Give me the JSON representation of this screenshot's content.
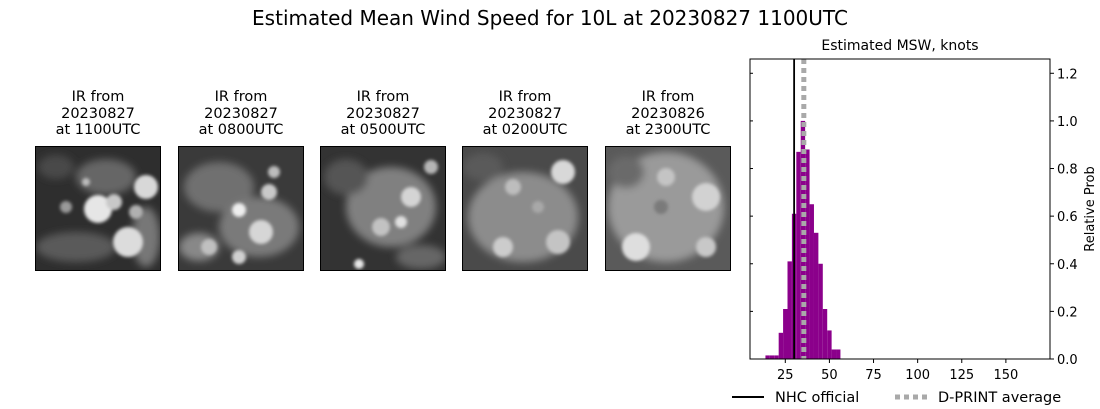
{
  "figure": {
    "suptitle": "Estimated Mean Wind Speed for 10L at 20230827 1100UTC"
  },
  "ir_panels": [
    {
      "title_line1": "IR from",
      "title_line2": "20230827",
      "title_line3": "at 1100UTC"
    },
    {
      "title_line1": "IR from",
      "title_line2": "20230827",
      "title_line3": "at 0800UTC"
    },
    {
      "title_line1": "IR from",
      "title_line2": "20230827",
      "title_line3": "at 0500UTC"
    },
    {
      "title_line1": "IR from",
      "title_line2": "20230827",
      "title_line3": "at 0200UTC"
    },
    {
      "title_line1": "IR from",
      "title_line2": "20230826",
      "title_line3": "at 2300UTC"
    }
  ],
  "chart_data": {
    "type": "bar",
    "title": "Estimated MSW, knots",
    "xlabel": "",
    "ylabel": "Relative Prob",
    "xlim": [
      5,
      175
    ],
    "ylim": [
      0,
      1.26
    ],
    "xticks": [
      25,
      50,
      75,
      100,
      125,
      150
    ],
    "yticks": [
      0.0,
      0.2,
      0.4,
      0.6,
      0.8,
      1.0,
      1.2
    ],
    "ytick_labels": [
      "0.0",
      "0.2",
      "0.4",
      "0.6",
      "0.8",
      "1.0",
      "1.2"
    ],
    "y_axis_side": "right",
    "bar_color": "#8b008b",
    "bin_width": 2.5,
    "bins": [
      {
        "x": 15,
        "value": 0.015
      },
      {
        "x": 17.5,
        "value": 0.015
      },
      {
        "x": 20,
        "value": 0.015
      },
      {
        "x": 22.5,
        "value": 0.11
      },
      {
        "x": 25,
        "value": 0.21
      },
      {
        "x": 27.5,
        "value": 0.41
      },
      {
        "x": 30,
        "value": 0.61
      },
      {
        "x": 32.5,
        "value": 0.87
      },
      {
        "x": 35,
        "value": 1.0
      },
      {
        "x": 37.5,
        "value": 0.88
      },
      {
        "x": 40,
        "value": 0.65
      },
      {
        "x": 42.5,
        "value": 0.53
      },
      {
        "x": 45,
        "value": 0.4
      },
      {
        "x": 47.5,
        "value": 0.21
      },
      {
        "x": 50,
        "value": 0.12
      },
      {
        "x": 52.5,
        "value": 0.04
      },
      {
        "x": 55,
        "value": 0.04
      }
    ],
    "vertical_lines": [
      {
        "name": "NHC official",
        "x": 30,
        "color": "#000000",
        "style": "solid"
      },
      {
        "name": "D-PRINT average",
        "x": 35.5,
        "color": "#a9a9a9",
        "style": "dotted"
      }
    ],
    "legend": {
      "placement": "bottom",
      "entries": [
        "NHC official",
        "D-PRINT average"
      ]
    }
  }
}
